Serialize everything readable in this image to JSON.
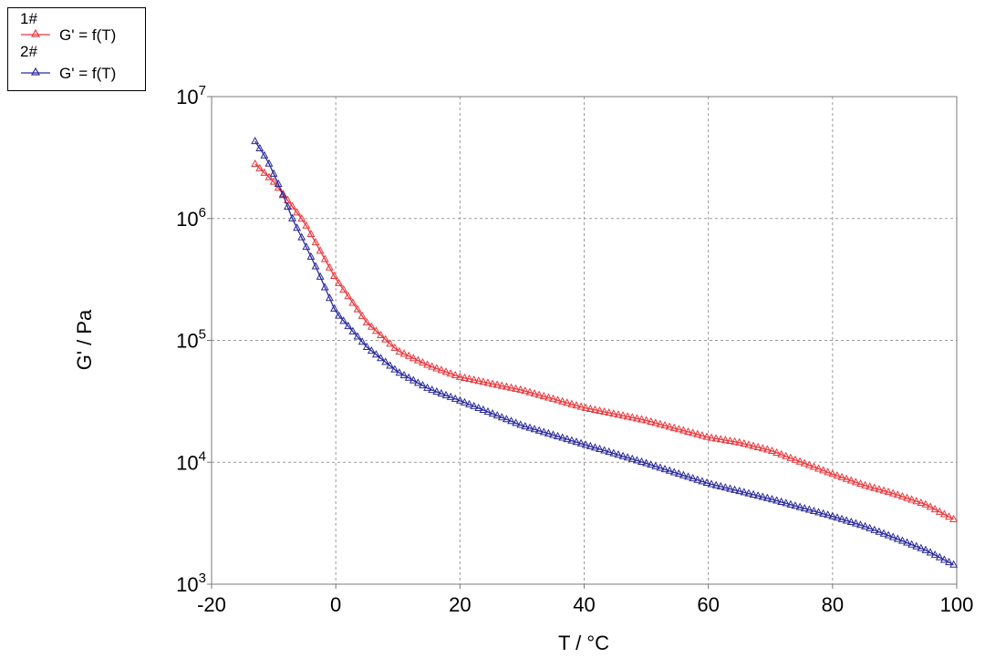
{
  "legend": {
    "entries": [
      {
        "group": "1#",
        "label": "G' = f(T)",
        "color": "#e8383d"
      },
      {
        "group": "2#",
        "label": "G' = f(T)",
        "color": "#2a2a9a"
      }
    ]
  },
  "chart_data": {
    "type": "scatter",
    "xlabel": "T / °C",
    "ylabel": "G' / Pa",
    "xlim": [
      -20,
      100
    ],
    "ylim": [
      1000,
      10000000
    ],
    "yscale": "log",
    "xticks": [
      "-20",
      "0",
      "20",
      "40",
      "60",
      "80",
      "100"
    ],
    "ytick_base": "10",
    "ytick_exponents": [
      "3",
      "4",
      "5",
      "6",
      "7"
    ],
    "grid": true,
    "legend_position": "top-left outside",
    "marker": "open-triangle",
    "series": [
      {
        "name": "1#",
        "color": "#e8383d",
        "x": [
          -13,
          -10,
          -5,
          0,
          5,
          10,
          15,
          20,
          30,
          40,
          50,
          60,
          65,
          70,
          75,
          80,
          85,
          90,
          95,
          100
        ],
        "y": [
          2800000,
          2000000,
          920000,
          320000,
          140000,
          82000,
          62000,
          50000,
          39000,
          28000,
          22000,
          16000,
          14500,
          12500,
          10000,
          8000,
          6500,
          5500,
          4500,
          3300
        ]
      },
      {
        "name": "2#",
        "color": "#2a2a9a",
        "x": [
          -13,
          -11,
          -9,
          -7,
          -5,
          -3,
          0,
          5,
          10,
          15,
          20,
          30,
          40,
          50,
          60,
          70,
          80,
          85,
          90,
          95,
          100
        ],
        "y": [
          4300000,
          3000000,
          1800000,
          1000000,
          620000,
          380000,
          170000,
          88000,
          55000,
          40000,
          32000,
          20000,
          14000,
          9800,
          6700,
          5000,
          3600,
          3000,
          2400,
          1900,
          1400
        ]
      }
    ]
  }
}
